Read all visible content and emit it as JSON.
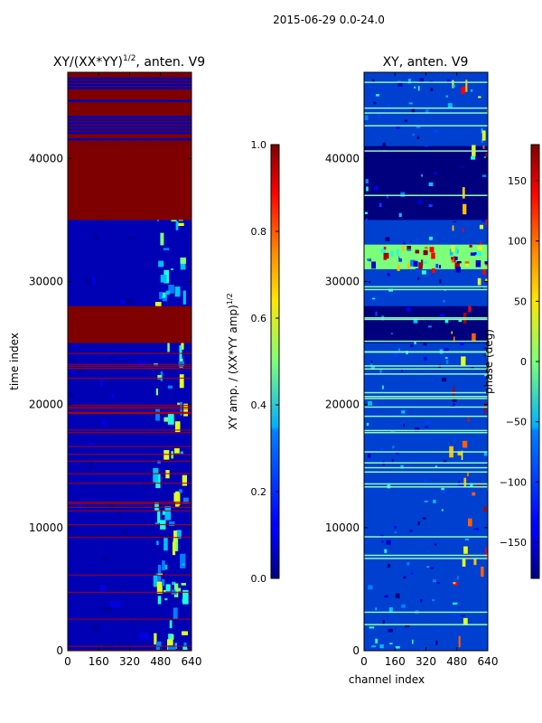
{
  "figure": {
    "suptitle": "2015-06-29 0.0-24.0"
  },
  "chart_data": [
    {
      "type": "heatmap",
      "title": "XY/(XX*YY)^{1/2}, anten. V9",
      "title_main": "XY/(XX*YY)",
      "title_exp": "1/2",
      "title_tail": ", anten. V9",
      "xlabel": "",
      "ylabel": "time index",
      "xlim": [
        0,
        640
      ],
      "ylim": [
        0,
        47000
      ],
      "xticks": [
        0,
        160,
        320,
        480,
        640
      ],
      "yticks": [
        0,
        10000,
        20000,
        30000,
        40000
      ],
      "colorbar": {
        "label_main": "XY amp. / (XX*YY amp)",
        "label_exp": "1/2",
        "range": [
          0.0,
          1.0
        ],
        "ticks": [
          "0.0",
          "0.2",
          "0.4",
          "0.6",
          "0.8",
          "1.0"
        ]
      }
    },
    {
      "type": "heatmap",
      "title": "XY, anten. V9",
      "xlabel": "channel index",
      "ylabel": "",
      "xlim": [
        0,
        640
      ],
      "ylim": [
        0,
        47000
      ],
      "xticks": [
        0,
        160,
        320,
        480,
        640
      ],
      "yticks": [
        0,
        10000,
        20000,
        30000,
        40000
      ],
      "colorbar": {
        "label": "phase (deg)",
        "range": [
          -180,
          180
        ],
        "ticks": [
          "-150",
          "-100",
          "-50",
          "0",
          "50",
          "100",
          "150"
        ]
      }
    }
  ]
}
